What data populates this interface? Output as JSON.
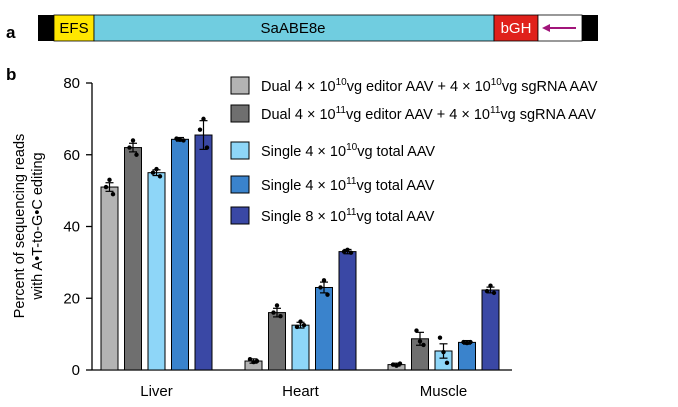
{
  "panel_a": {
    "letter": "a",
    "segments": [
      {
        "label": "",
        "color": "#000000"
      },
      {
        "label": "EFS",
        "color": "#ffe600"
      },
      {
        "label": "SaABE8e",
        "color": "#70cde0"
      },
      {
        "label": "bGH",
        "color": "#e0211b"
      },
      {
        "label": "",
        "color": "#ffffff"
      },
      {
        "label": "",
        "color": "#000000"
      }
    ],
    "arrow_color": "#a1157a"
  },
  "panel_b": {
    "letter": "b"
  },
  "legend": [
    {
      "parts": [
        "Dual 4 × 10",
        "10",
        "vg editor AAV + 4 × 10",
        "10",
        "vg sgRNA AAV"
      ],
      "color": "#b3b3b3"
    },
    {
      "parts": [
        "Dual 4 × 10",
        "11",
        "vg editor AAV + 4 × 10",
        "11",
        "vg sgRNA AAV"
      ],
      "color": "#6f6f6f"
    },
    {
      "parts": [
        "Single 4 × 10",
        "10",
        "vg total AAV"
      ],
      "color": "#8ed6f8"
    },
    {
      "parts": [
        "Single 4 × 10",
        "11",
        "vg total AAV"
      ],
      "color": "#3a83cc"
    },
    {
      "parts": [
        "Single 8 × 10",
        "11",
        "vg total AAV"
      ],
      "color": "#3a48a5"
    }
  ],
  "chart_data": {
    "type": "bar",
    "ylabel_line1": "Percent of sequencing reads",
    "ylabel_line2": "with A•T-to-G•C editing",
    "ylim": [
      0,
      80
    ],
    "yticks": [
      0,
      20,
      40,
      60,
      80
    ],
    "categories": [
      "Liver",
      "Heart",
      "Muscle"
    ],
    "series": [
      {
        "colorIndex": 0,
        "values": [
          51,
          2.5,
          1.5
        ],
        "errors": [
          1.2,
          0.6,
          0.4
        ],
        "points": [
          [
            51,
            53,
            49
          ],
          [
            3,
            2.2,
            2.5
          ],
          [
            1.5,
            1.2,
            1.8
          ]
        ]
      },
      {
        "colorIndex": 1,
        "values": [
          62,
          16,
          8.7
        ],
        "errors": [
          1.2,
          1.2,
          1.8
        ],
        "points": [
          [
            62,
            64,
            60
          ],
          [
            16,
            18,
            15
          ],
          [
            11,
            8,
            7
          ]
        ]
      },
      {
        "colorIndex": 2,
        "values": [
          55,
          12.5,
          5.3
        ],
        "errors": [
          0.8,
          0.8,
          2.0
        ],
        "points": [
          [
            55,
            56,
            54
          ],
          [
            12,
            13.5,
            12.5
          ],
          [
            9,
            5,
            2
          ]
        ]
      },
      {
        "colorIndex": 3,
        "values": [
          64.3,
          23,
          7.7
        ],
        "errors": [
          0.5,
          1.5,
          0.5
        ],
        "points": [
          [
            64.5,
            64.2,
            64
          ],
          [
            23,
            25,
            21
          ],
          [
            7.8,
            7.5,
            7.8
          ]
        ]
      },
      {
        "colorIndex": 4,
        "values": [
          65.5,
          33,
          22.3
        ],
        "errors": [
          4.0,
          0.6,
          0.8
        ],
        "points": [
          [
            67,
            70,
            62
          ],
          [
            33,
            33.5,
            32.7
          ],
          [
            22,
            23.5,
            21.5
          ]
        ]
      }
    ]
  }
}
